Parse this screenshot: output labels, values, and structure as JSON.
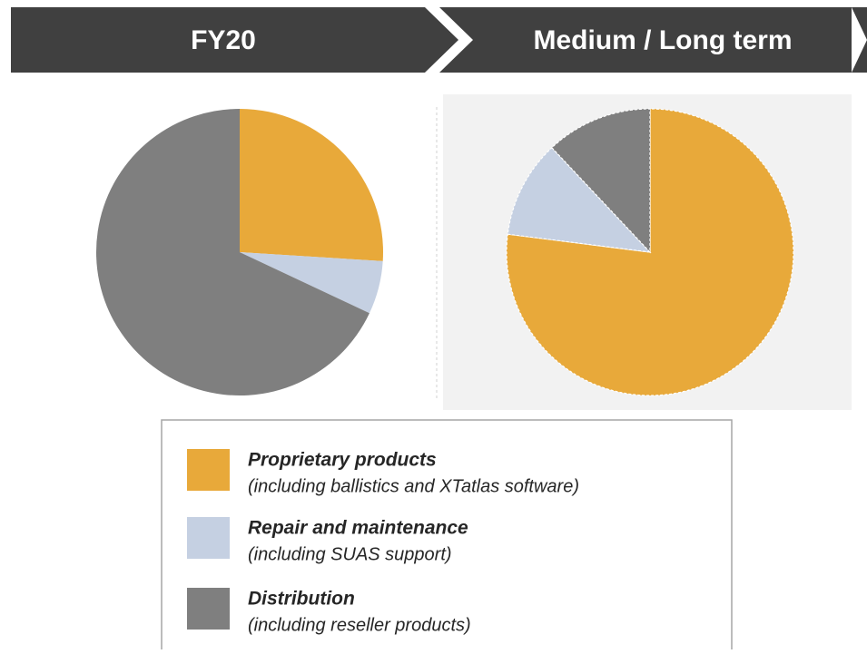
{
  "chart_data": [
    {
      "type": "pie",
      "title": "FY20",
      "values": [
        26,
        6,
        68
      ]
    },
    {
      "type": "pie",
      "title": "Medium / Long term",
      "values": [
        77,
        11,
        12
      ]
    }
  ],
  "legend": {
    "items": [
      {
        "name": "Proprietary products",
        "note": "(including ballistics and XTatlas software)",
        "color": "#e8a93a"
      },
      {
        "name": "Repair and maintenance",
        "note": "(including SUAS support)",
        "color": "#c5d0e2"
      },
      {
        "name": "Distribution",
        "note": "(including reseller products)",
        "color": "#7f7f7f"
      }
    ]
  }
}
